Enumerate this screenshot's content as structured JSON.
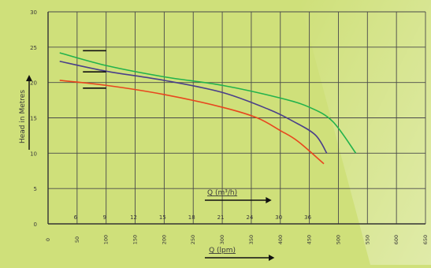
{
  "chart_data": {
    "type": "line",
    "title": "",
    "ylabel": "Head in Metres",
    "xlabel_bottom": "Q (lpm)",
    "xlabel_top": "Q (m³/h)",
    "ylim": [
      0,
      30
    ],
    "y_ticks": [
      0,
      5,
      10,
      15,
      20,
      25,
      30
    ],
    "xlim": [
      0,
      650
    ],
    "x_ticks_lpm": [
      "0",
      "50",
      "100",
      "150",
      "200",
      "250",
      "300",
      "350",
      "400",
      "450",
      "500",
      "550",
      "600",
      "650"
    ],
    "x_ticks_m3h": [
      "6",
      "9",
      "12",
      "15",
      "18",
      "21",
      "24",
      "30",
      "36"
    ],
    "grid": true,
    "legend": "none",
    "series": [
      {
        "color": "#22b24c",
        "x": [
          20,
          100,
          200,
          300,
          400,
          450,
          490,
          530
        ],
        "y": [
          24.2,
          22.4,
          20.8,
          19.6,
          17.8,
          16.5,
          14.5,
          10
        ]
      },
      {
        "color": "#4a3f8a",
        "x": [
          20,
          100,
          200,
          300,
          380,
          420,
          460,
          480
        ],
        "y": [
          23,
          21.6,
          20.3,
          18.6,
          16.2,
          14.6,
          12.6,
          10
        ]
      },
      {
        "color": "#e8461e",
        "x": [
          20,
          100,
          200,
          300,
          360,
          400,
          430,
          475
        ],
        "y": [
          20.3,
          19.6,
          18.3,
          16.5,
          15,
          13.2,
          11.7,
          8.5
        ]
      }
    ],
    "markers": [
      {
        "x": [
          60,
          100
        ],
        "y": 24.5
      },
      {
        "x": [
          60,
          100
        ],
        "y": 21.5
      },
      {
        "x": [
          60,
          100
        ],
        "y": 19.2
      }
    ]
  }
}
